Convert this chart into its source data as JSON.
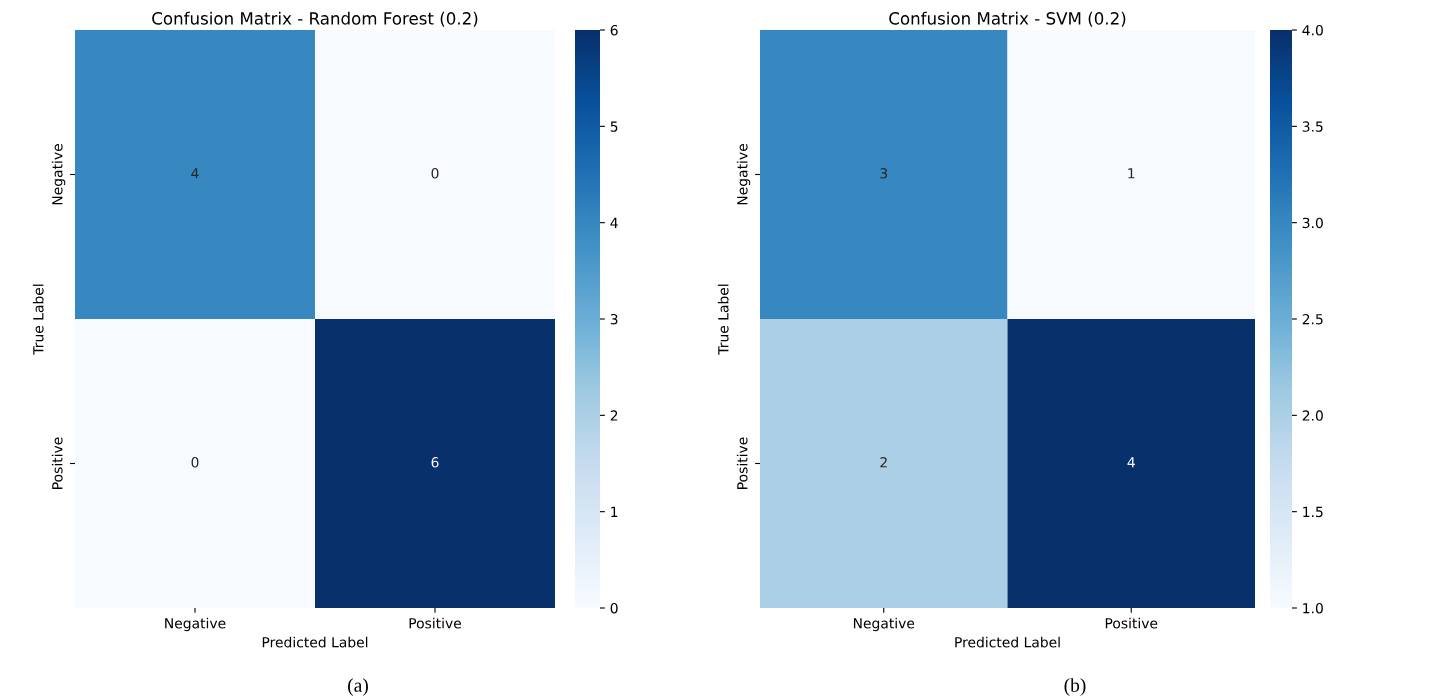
{
  "chart_data": [
    {
      "type": "heatmap",
      "title": "Confusion Matrix - Random Forest (0.2)",
      "xlabel": "Predicted Label",
      "ylabel": "True Label",
      "categories": [
        "Negative",
        "Positive"
      ],
      "y_categories": [
        "Negative",
        "Positive"
      ],
      "cells": [
        [
          4,
          0
        ],
        [
          0,
          6
        ]
      ],
      "clim": [
        0,
        6
      ],
      "cticks": [
        0,
        1,
        2,
        3,
        4,
        5,
        6
      ],
      "data_labels": true,
      "annotations": [
        "(a)"
      ]
    },
    {
      "type": "heatmap",
      "title": "Confusion Matrix - SVM (0.2)",
      "xlabel": "Predicted Label",
      "ylabel": "True Label",
      "categories": [
        "Negative",
        "Positive"
      ],
      "y_categories": [
        "Negative",
        "Positive"
      ],
      "cells": [
        [
          3,
          1
        ],
        [
          2,
          4
        ]
      ],
      "clim": [
        1,
        4
      ],
      "cticks": [
        {
          "value": 1,
          "label": "1.0"
        },
        {
          "value": 1.5,
          "label": "1.5"
        },
        {
          "value": 2,
          "label": "2.0"
        },
        {
          "value": 2.5,
          "label": "2.5"
        },
        {
          "value": 3,
          "label": "3.0"
        },
        {
          "value": 3.5,
          "label": "3.5"
        },
        {
          "value": 4,
          "label": "4.0"
        }
      ],
      "data_labels": true,
      "annotations": [
        "(b)"
      ]
    }
  ]
}
